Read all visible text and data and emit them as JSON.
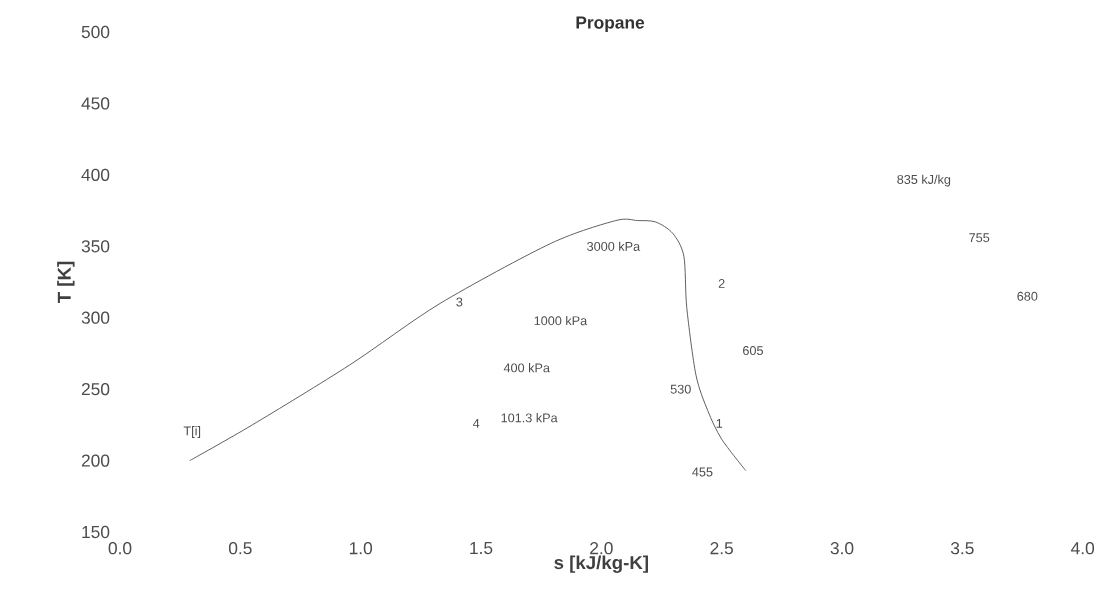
{
  "chart_data": {
    "type": "line",
    "title": "Propane",
    "xlabel": "s [kJ/kg-K]",
    "ylabel": "T [K]",
    "xlim": [
      0,
      4
    ],
    "ylim": [
      150,
      500
    ],
    "xticks": [
      {
        "value": 0,
        "label": "0.0"
      },
      {
        "value": 0.5,
        "label": "0.5"
      },
      {
        "value": 1,
        "label": "1.0"
      },
      {
        "value": 1.5,
        "label": "1.5"
      },
      {
        "value": 2,
        "label": "2.0"
      },
      {
        "value": 2.5,
        "label": "2.5"
      },
      {
        "value": 3,
        "label": "3.0"
      },
      {
        "value": 3.5,
        "label": "3.5"
      },
      {
        "value": 4,
        "label": "4.0"
      }
    ],
    "yticks": [
      150,
      200,
      250,
      300,
      350,
      400,
      450,
      500
    ],
    "series": [
      {
        "color": "#555555",
        "x": [
          0.29,
          0.55,
          0.955,
          1.33,
          1.79,
          2.06,
          2.15,
          2.226,
          2.297,
          2.343,
          2.355,
          2.393,
          2.442,
          2.5,
          2.6
        ],
        "values": [
          200,
          225,
          267,
          310,
          352,
          368,
          368,
          367,
          359,
          343,
          307,
          260,
          235,
          215,
          193
        ]
      }
    ],
    "annotations": [
      "T[i]",
      "3",
      "4",
      "101.3 kPa",
      "400 kPa",
      "1000 kPa",
      "3000 kPa",
      "2",
      "605",
      "530",
      {
        "text": "1",
        "x": 2.49,
        "y": 226
      },
      "455",
      "835 kJ/kg",
      "755",
      "680"
    ]
  }
}
